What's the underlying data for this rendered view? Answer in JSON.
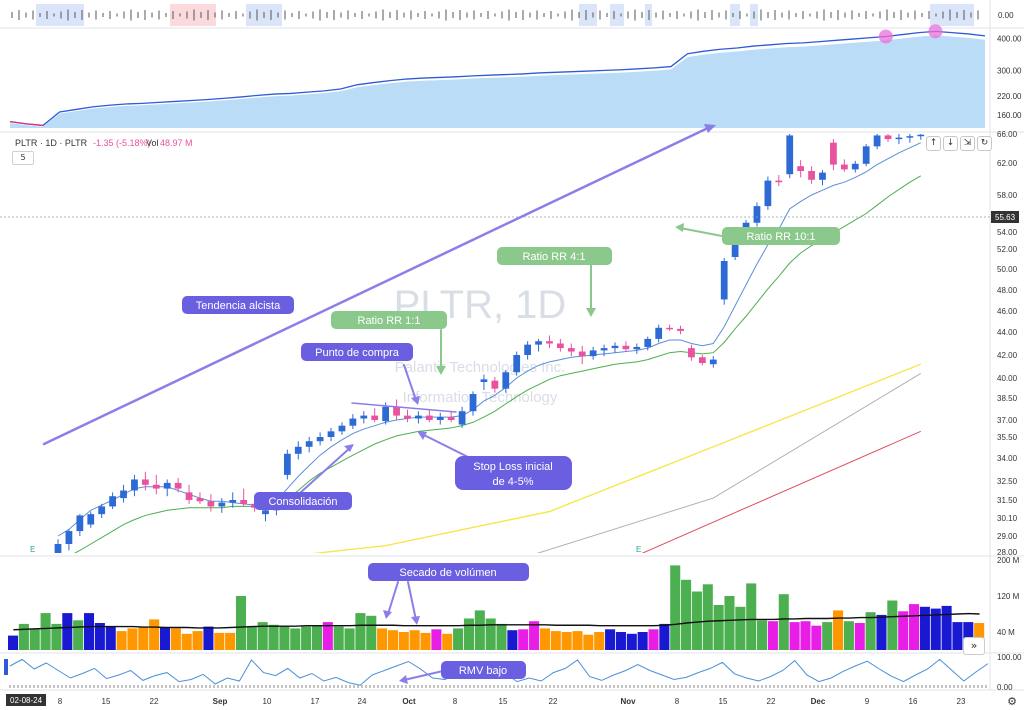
{
  "header": {
    "symbol": "PLTR · 1D · PLTR",
    "change": "-1.35 (-5.18%)",
    "volume_label": "Vol",
    "volume_value": "48.97 M",
    "interval": "5",
    "watermark_symbol": "PLTR, 1D",
    "watermark_name": "Palantir Technologies Inc.",
    "watermark_sector": "Information Technology"
  },
  "toolbar": {
    "up_icon": "↑",
    "down_icon": "↓",
    "expand_icon": "⇲",
    "refresh_icon": "↻"
  },
  "scroll_icon": "»",
  "settings_icon": "⚙",
  "colors": {
    "annotation_purple": "#6a5fe0",
    "annotation_green": "#8bc88b",
    "candle_blue": "#2e6ad6",
    "candle_pink": "#e8529e",
    "vol_green": "#4caf50",
    "vol_orange": "#ff9800",
    "vol_magenta": "#e91ee6",
    "vol_blue": "#1919d1",
    "ema_blue": "#5b8fd9",
    "ema_green": "#4caf50",
    "sma_yellow": "#f5e642",
    "sma_gray": "#b0b0b0",
    "sma_red": "#e05060",
    "rs_blue": "#2e5bd6"
  },
  "chart_data": [
    {
      "type": "candlestick",
      "name": "price",
      "ylim": [
        28.0,
        66.0
      ],
      "y_ticks": [
        "66.00",
        "62.00",
        "58.00",
        "54.00",
        "52.00",
        "50.00",
        "48.00",
        "46.00",
        "44.00",
        "42.00",
        "40.00",
        "38.50",
        "37.00",
        "35.50",
        "34.00",
        "32.50",
        "31.50",
        "30.10",
        "29.00",
        "28.00"
      ],
      "last_price": "55.63",
      "x_ticks": [
        "8",
        "15",
        "22",
        "Sep",
        "10",
        "17",
        "24",
        "Oct",
        "8",
        "15",
        "22",
        "Nov",
        "8",
        "15",
        "22",
        "Dec",
        "9",
        "16",
        "23"
      ],
      "date_start": "02-08-24",
      "candles": [
        {
          "o": 27.6,
          "h": 28.8,
          "l": 27.2,
          "c": 28.5
        },
        {
          "o": 28.5,
          "h": 29.4,
          "l": 28.1,
          "c": 29.3
        },
        {
          "o": 29.3,
          "h": 30.4,
          "l": 29.0,
          "c": 30.3
        },
        {
          "o": 29.7,
          "h": 30.6,
          "l": 29.5,
          "c": 30.4
        },
        {
          "o": 30.4,
          "h": 31.2,
          "l": 30.1,
          "c": 31.0
        },
        {
          "o": 31.0,
          "h": 31.9,
          "l": 30.8,
          "c": 31.7
        },
        {
          "o": 31.6,
          "h": 32.3,
          "l": 31.3,
          "c": 32.0
        },
        {
          "o": 32.0,
          "h": 32.9,
          "l": 31.7,
          "c": 32.6
        },
        {
          "o": 32.6,
          "h": 33.1,
          "l": 32.0,
          "c": 32.3
        },
        {
          "o": 32.3,
          "h": 32.9,
          "l": 31.8,
          "c": 32.1
        },
        {
          "o": 32.1,
          "h": 32.6,
          "l": 31.7,
          "c": 32.4
        },
        {
          "o": 32.4,
          "h": 32.7,
          "l": 31.9,
          "c": 32.1
        },
        {
          "o": 31.9,
          "h": 32.3,
          "l": 31.2,
          "c": 31.5
        },
        {
          "o": 31.6,
          "h": 31.9,
          "l": 31.2,
          "c": 31.4
        },
        {
          "o": 31.4,
          "h": 31.8,
          "l": 30.6,
          "c": 31.0
        },
        {
          "o": 31.0,
          "h": 31.6,
          "l": 30.5,
          "c": 31.3
        },
        {
          "o": 31.3,
          "h": 31.9,
          "l": 30.9,
          "c": 31.5
        },
        {
          "o": 31.5,
          "h": 32.1,
          "l": 31.0,
          "c": 31.2
        },
        {
          "o": 31.2,
          "h": 31.6,
          "l": 30.6,
          "c": 30.9
        },
        {
          "o": 30.4,
          "h": 30.9,
          "l": 29.9,
          "c": 30.7
        },
        {
          "o": 30.7,
          "h": 31.4,
          "l": 30.3,
          "c": 31.0
        },
        {
          "o": 32.9,
          "h": 34.6,
          "l": 32.6,
          "c": 34.3
        },
        {
          "o": 34.3,
          "h": 35.2,
          "l": 33.9,
          "c": 34.8
        },
        {
          "o": 34.8,
          "h": 35.5,
          "l": 34.4,
          "c": 35.2
        },
        {
          "o": 35.2,
          "h": 35.9,
          "l": 34.9,
          "c": 35.5
        },
        {
          "o": 35.5,
          "h": 36.3,
          "l": 35.2,
          "c": 36.0
        },
        {
          "o": 36.0,
          "h": 36.8,
          "l": 35.7,
          "c": 36.5
        },
        {
          "o": 36.5,
          "h": 37.4,
          "l": 36.2,
          "c": 37.1
        },
        {
          "o": 37.1,
          "h": 37.6,
          "l": 36.7,
          "c": 37.3
        },
        {
          "o": 37.3,
          "h": 37.8,
          "l": 36.8,
          "c": 37.0
        },
        {
          "o": 36.9,
          "h": 38.2,
          "l": 36.6,
          "c": 37.9
        },
        {
          "o": 37.9,
          "h": 38.4,
          "l": 37.0,
          "c": 37.3
        },
        {
          "o": 37.3,
          "h": 37.7,
          "l": 36.8,
          "c": 37.1
        },
        {
          "o": 37.1,
          "h": 37.6,
          "l": 36.7,
          "c": 37.3
        },
        {
          "o": 37.3,
          "h": 37.7,
          "l": 36.8,
          "c": 37.0
        },
        {
          "o": 37.0,
          "h": 37.5,
          "l": 36.6,
          "c": 37.2
        },
        {
          "o": 37.2,
          "h": 37.6,
          "l": 36.8,
          "c": 37.0
        },
        {
          "o": 36.6,
          "h": 37.9,
          "l": 36.3,
          "c": 37.6
        },
        {
          "o": 37.6,
          "h": 39.0,
          "l": 37.3,
          "c": 38.8
        },
        {
          "o": 39.7,
          "h": 40.3,
          "l": 39.1,
          "c": 39.9
        },
        {
          "o": 39.8,
          "h": 40.1,
          "l": 38.9,
          "c": 39.2
        },
        {
          "o": 39.2,
          "h": 40.7,
          "l": 38.9,
          "c": 40.5
        },
        {
          "o": 40.5,
          "h": 42.3,
          "l": 40.2,
          "c": 42.0
        },
        {
          "o": 42.0,
          "h": 43.2,
          "l": 41.6,
          "c": 42.9
        },
        {
          "o": 42.9,
          "h": 43.4,
          "l": 42.3,
          "c": 43.2
        },
        {
          "o": 43.2,
          "h": 43.7,
          "l": 42.6,
          "c": 43.0
        },
        {
          "o": 43.0,
          "h": 43.4,
          "l": 42.3,
          "c": 42.6
        },
        {
          "o": 42.6,
          "h": 43.0,
          "l": 41.9,
          "c": 42.3
        },
        {
          "o": 42.3,
          "h": 42.8,
          "l": 41.2,
          "c": 41.9
        },
        {
          "o": 41.9,
          "h": 42.7,
          "l": 41.6,
          "c": 42.4
        },
        {
          "o": 42.4,
          "h": 42.9,
          "l": 41.9,
          "c": 42.6
        },
        {
          "o": 42.6,
          "h": 43.1,
          "l": 42.2,
          "c": 42.8
        },
        {
          "o": 42.8,
          "h": 43.2,
          "l": 42.3,
          "c": 42.5
        },
        {
          "o": 42.5,
          "h": 43.0,
          "l": 42.1,
          "c": 42.7
        },
        {
          "o": 42.7,
          "h": 43.6,
          "l": 42.4,
          "c": 43.4
        },
        {
          "o": 43.4,
          "h": 44.7,
          "l": 43.1,
          "c": 44.4
        },
        {
          "o": 44.4,
          "h": 44.7,
          "l": 44.1,
          "c": 44.3
        },
        {
          "o": 44.3,
          "h": 44.6,
          "l": 43.8,
          "c": 44.1
        },
        {
          "o": 42.6,
          "h": 42.9,
          "l": 41.5,
          "c": 41.8
        },
        {
          "o": 41.8,
          "h": 42.0,
          "l": 41.1,
          "c": 41.3
        },
        {
          "o": 41.2,
          "h": 41.9,
          "l": 40.9,
          "c": 41.6
        },
        {
          "o": 47.1,
          "h": 51.1,
          "l": 46.6,
          "c": 50.8
        },
        {
          "o": 51.2,
          "h": 54.3,
          "l": 50.9,
          "c": 54.1
        },
        {
          "o": 54.1,
          "h": 55.3,
          "l": 53.6,
          "c": 55.0
        },
        {
          "o": 55.0,
          "h": 57.2,
          "l": 54.6,
          "c": 56.8
        },
        {
          "o": 56.8,
          "h": 60.3,
          "l": 56.4,
          "c": 59.8
        },
        {
          "o": 59.8,
          "h": 60.5,
          "l": 59.1,
          "c": 59.6
        },
        {
          "o": 60.6,
          "h": 66.2,
          "l": 60.1,
          "c": 65.8
        },
        {
          "o": 61.6,
          "h": 62.4,
          "l": 60.2,
          "c": 61.0
        },
        {
          "o": 61.0,
          "h": 61.6,
          "l": 59.4,
          "c": 59.9
        },
        {
          "o": 59.9,
          "h": 61.1,
          "l": 59.2,
          "c": 60.8
        },
        {
          "o": 64.8,
          "h": 65.3,
          "l": 61.1,
          "c": 61.8
        },
        {
          "o": 61.8,
          "h": 62.5,
          "l": 60.9,
          "c": 61.2
        },
        {
          "o": 61.2,
          "h": 62.3,
          "l": 60.8,
          "c": 61.9
        },
        {
          "o": 61.9,
          "h": 64.6,
          "l": 61.6,
          "c": 64.3
        },
        {
          "o": 64.3,
          "h": 66.2,
          "l": 63.9,
          "c": 65.8
        },
        {
          "o": 65.8,
          "h": 66.0,
          "l": 64.9,
          "c": 65.3
        },
        {
          "o": 65.3,
          "h": 66.0,
          "l": 64.6,
          "c": 65.5
        },
        {
          "o": 65.5,
          "h": 66.0,
          "l": 64.8,
          "c": 65.7
        },
        {
          "o": 65.7,
          "h": 66.0,
          "l": 65.2,
          "c": 65.9
        }
      ],
      "ema_fast": [
        29.0,
        29.4,
        30.0,
        30.7,
        31.1,
        31.5,
        31.8,
        32.1,
        32.2,
        32.2,
        32.2,
        32.0,
        31.8,
        31.6,
        31.4,
        31.4,
        31.3,
        31.2,
        31.1,
        31.0,
        31.4,
        32.1,
        32.8,
        33.5,
        34.2,
        34.8,
        35.3,
        35.8,
        36.2,
        36.5,
        36.8,
        37.0,
        37.1,
        37.2,
        37.2,
        37.2,
        37.2,
        37.3,
        37.7,
        38.3,
        38.7,
        39.3,
        40.0,
        40.6,
        41.1,
        41.4,
        41.6,
        41.8,
        41.9,
        42.0,
        42.1,
        42.2,
        42.3,
        42.4,
        42.6,
        43.0,
        43.3,
        43.3,
        43.0,
        42.8,
        43.0,
        44.5,
        46.5,
        48.5,
        50.5,
        52.5,
        54.3,
        56.5,
        57.3,
        58.0,
        58.6,
        59.2,
        59.6,
        60.2,
        60.9,
        61.8,
        62.6,
        63.4,
        64.1,
        64.8
      ],
      "ema_slow": [
        27.4,
        27.7,
        28.1,
        28.5,
        28.9,
        29.3,
        29.7,
        30.0,
        30.3,
        30.5,
        30.7,
        30.8,
        30.9,
        30.9,
        30.9,
        30.9,
        31.0,
        31.0,
        31.0,
        31.0,
        31.2,
        31.6,
        32.0,
        32.5,
        33.0,
        33.4,
        33.8,
        34.2,
        34.6,
        35.0,
        35.3,
        35.6,
        35.8,
        36.0,
        36.1,
        36.2,
        36.3,
        36.5,
        36.8,
        37.2,
        37.6,
        38.1,
        38.6,
        39.1,
        39.5,
        39.9,
        40.2,
        40.4,
        40.6,
        40.8,
        41.0,
        41.2,
        41.3,
        41.4,
        41.6,
        41.9,
        42.2,
        42.3,
        42.2,
        42.1,
        42.2,
        43.1,
        44.3,
        45.5,
        46.8,
        48.1,
        49.3,
        50.6,
        51.6,
        52.4,
        53.1,
        53.9,
        54.6,
        55.3,
        56.0,
        56.9,
        57.8,
        58.7,
        59.6,
        60.4
      ],
      "sma_yellow_line": [
        [
          13,
          27.0
        ],
        [
          30,
          28.4
        ],
        [
          45,
          30.6
        ],
        [
          60,
          34.8
        ],
        [
          79,
          41.2
        ]
      ],
      "sma_gray_line": [
        [
          41,
          27.2
        ],
        [
          60,
          31.6
        ],
        [
          79,
          40.4
        ]
      ],
      "sma_red_line": [
        [
          52,
          27.4
        ],
        [
          79,
          36.0
        ]
      ]
    },
    {
      "type": "bar",
      "name": "volume",
      "ylim": [
        0,
        200
      ],
      "y_ticks": [
        "200 M",
        "120 M",
        "40 M"
      ],
      "values": [
        32,
        58,
        48,
        82,
        58,
        82,
        66,
        82,
        60,
        52,
        42,
        48,
        50,
        68,
        50,
        48,
        36,
        42,
        52,
        38,
        38,
        120,
        52,
        62,
        56,
        52,
        48,
        52,
        54,
        62,
        52,
        48,
        82,
        76,
        48,
        44,
        40,
        44,
        38,
        46,
        36,
        48,
        70,
        88,
        70,
        58,
        44,
        46,
        64,
        48,
        42,
        40,
        42,
        34,
        40,
        46,
        40,
        36,
        40,
        46,
        58,
        188,
        156,
        130,
        146,
        100,
        120,
        96,
        148,
        66,
        64,
        124,
        62,
        64,
        54,
        62,
        88,
        64,
        60,
        84,
        78,
        110,
        86,
        102,
        96,
        92,
        98,
        62,
        62,
        60
      ],
      "colors": [
        "blue",
        "green",
        "green",
        "green",
        "green",
        "blue",
        "green",
        "blue",
        "blue",
        "blue",
        "orange",
        "orange",
        "orange",
        "orange",
        "blue",
        "orange",
        "orange",
        "orange",
        "blue",
        "orange",
        "orange",
        "green",
        "green",
        "green",
        "green",
        "green",
        "green",
        "green",
        "green",
        "magenta",
        "green",
        "green",
        "green",
        "green",
        "orange",
        "orange",
        "orange",
        "orange",
        "orange",
        "magenta",
        "orange",
        "green",
        "green",
        "green",
        "green",
        "green",
        "blue",
        "magenta",
        "magenta",
        "orange",
        "orange",
        "orange",
        "orange",
        "orange",
        "orange",
        "blue",
        "blue",
        "blue",
        "blue",
        "magenta",
        "blue",
        "green",
        "green",
        "green",
        "green",
        "green",
        "green",
        "green",
        "green",
        "green",
        "magenta",
        "green",
        "magenta",
        "magenta",
        "magenta",
        "green",
        "orange",
        "green",
        "magenta",
        "green",
        "blue",
        "green",
        "magenta",
        "magenta",
        "blue",
        "blue",
        "blue",
        "blue",
        "blue",
        "orange"
      ],
      "ma": [
        45,
        46,
        47,
        48,
        49,
        50,
        51,
        52,
        52,
        52,
        52,
        52,
        51,
        51,
        50,
        50,
        50,
        49,
        49,
        49,
        50,
        51,
        52,
        53,
        53,
        53,
        53,
        54,
        54,
        54,
        54,
        54,
        55,
        55,
        55,
        55,
        54,
        54,
        54,
        54,
        54,
        54,
        55,
        55,
        56,
        56,
        56,
        56,
        56,
        56,
        55,
        55,
        55,
        55,
        54,
        54,
        54,
        54,
        54,
        54,
        55,
        57,
        60,
        62,
        64,
        65,
        66,
        67,
        68,
        68,
        68,
        69,
        69,
        70,
        70,
        70,
        71,
        71,
        72,
        72,
        73,
        74,
        75,
        76,
        77,
        78,
        79,
        80,
        81,
        80
      ]
    },
    {
      "type": "line",
      "name": "relative_strength",
      "y_ticks": [
        "400.00",
        "300.00",
        "220.00",
        "160.00"
      ],
      "values": [
        140,
        133,
        128,
        170,
        178,
        186,
        191,
        195,
        197,
        200,
        203,
        206,
        209,
        213,
        217,
        222,
        226,
        228,
        232,
        236,
        242,
        255,
        262,
        268,
        273,
        276,
        278,
        280,
        283,
        285,
        287,
        289,
        292,
        294,
        296,
        298,
        300,
        302,
        305,
        308,
        312,
        352,
        360,
        366,
        370,
        376,
        380,
        384,
        386,
        390,
        394,
        398,
        402,
        406,
        412,
        418,
        422,
        418,
        414,
        408
      ],
      "markers": [
        53,
        56
      ]
    },
    {
      "type": "line",
      "name": "rmv",
      "y_ticks": [
        "100.00",
        "0.00"
      ],
      "values": [
        70,
        92,
        60,
        80,
        55,
        30,
        45,
        62,
        28,
        40,
        55,
        22,
        38,
        48,
        18,
        25,
        42,
        10,
        30,
        20,
        90,
        48,
        38,
        62,
        30,
        45,
        20,
        32,
        15,
        6,
        40,
        55,
        70,
        85,
        60,
        30,
        25,
        40,
        65,
        50,
        72,
        46,
        18,
        30,
        20,
        48,
        62,
        90,
        35,
        22,
        40,
        55,
        75,
        55,
        40,
        25,
        32,
        48,
        62,
        82,
        44,
        30,
        20,
        35,
        55,
        88,
        40,
        18,
        30,
        52,
        70,
        86,
        60,
        36,
        18,
        40,
        60,
        92,
        56,
        20,
        50,
        78
      ]
    }
  ],
  "top_strip": {
    "label": "0.00"
  },
  "annotations": {
    "tendencia": "Tendencia alcista",
    "consolidacion": "Consolidación",
    "punto_compra": "Punto de compra",
    "stop_loss_line1": "Stop Loss inicial",
    "stop_loss_line2": "de 4-5%",
    "ratio_1_1": "Ratio RR 1:1",
    "ratio_4_1": "Ratio RR 4:1",
    "ratio_10_1": "Ratio RR 10:1",
    "secado": "Secado de volúmen",
    "rmv": "RMV bajo"
  },
  "earnings_marker": "E"
}
